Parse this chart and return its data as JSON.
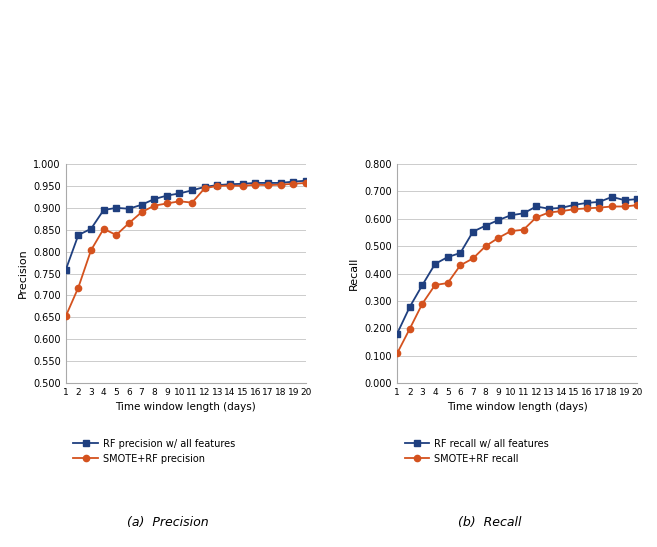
{
  "x": [
    1,
    2,
    3,
    4,
    5,
    6,
    7,
    8,
    9,
    10,
    11,
    12,
    13,
    14,
    15,
    16,
    17,
    18,
    19,
    20
  ],
  "precision_rf": [
    0.758,
    0.838,
    0.852,
    0.895,
    0.9,
    0.898,
    0.907,
    0.92,
    0.928,
    0.933,
    0.94,
    0.948,
    0.952,
    0.954,
    0.955,
    0.957,
    0.957,
    0.957,
    0.96,
    0.962
  ],
  "precision_smote": [
    0.652,
    0.718,
    0.803,
    0.852,
    0.838,
    0.865,
    0.89,
    0.905,
    0.91,
    0.915,
    0.912,
    0.945,
    0.95,
    0.951,
    0.95,
    0.953,
    0.952,
    0.953,
    0.955,
    0.957
  ],
  "recall_rf": [
    0.18,
    0.278,
    0.358,
    0.435,
    0.46,
    0.475,
    0.553,
    0.575,
    0.595,
    0.613,
    0.62,
    0.645,
    0.637,
    0.64,
    0.651,
    0.658,
    0.662,
    0.68,
    0.668,
    0.672
  ],
  "recall_smote": [
    0.108,
    0.198,
    0.29,
    0.358,
    0.365,
    0.43,
    0.455,
    0.5,
    0.53,
    0.555,
    0.56,
    0.605,
    0.623,
    0.628,
    0.635,
    0.638,
    0.641,
    0.645,
    0.645,
    0.65
  ],
  "blue_color": "#1F3F7F",
  "orange_color": "#D4521E",
  "precision_ylim": [
    0.5,
    1.0
  ],
  "precision_yticks": [
    0.5,
    0.55,
    0.6,
    0.65,
    0.7,
    0.75,
    0.8,
    0.85,
    0.9,
    0.95,
    1.0
  ],
  "recall_ylim": [
    0.0,
    0.8
  ],
  "recall_yticks": [
    0.0,
    0.1,
    0.2,
    0.3,
    0.4,
    0.5,
    0.6,
    0.7,
    0.8
  ],
  "xlabel": "Time window length (days)",
  "ylabel_precision": "Precision",
  "ylabel_recall": "Recall",
  "legend_precision_blue": "RF precision w/ all features",
  "legend_precision_orange": "SMOTE+RF precision",
  "legend_recall_blue": "RF recall w/ all features",
  "legend_recall_orange": "SMOTE+RF recall",
  "subtitle_precision": "(a)  Precision",
  "subtitle_recall": "(b)  Recall",
  "grid_color": "#CCCCCC",
  "background_color": "#FFFFFF"
}
